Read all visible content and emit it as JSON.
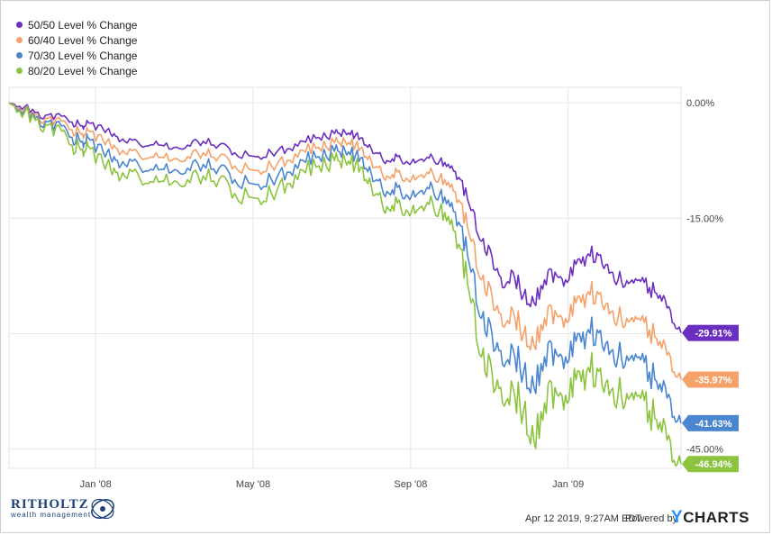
{
  "chart_data": {
    "type": "line",
    "x_ticks": [
      "Jan '08",
      "May '08",
      "Sep '08",
      "Jan '09"
    ],
    "y_ticks": [
      "0.00%",
      "-15.00%",
      "-45.00%"
    ],
    "ylim": [
      -47.5,
      2
    ],
    "grid": true,
    "legend_position": "top-left",
    "series": [
      {
        "name": "50/50 Level % Change",
        "color": "#6b2fbf",
        "end_label": "-29.91%",
        "points": [
          [
            0,
            0
          ],
          [
            3,
            -0.5
          ],
          [
            6,
            -2
          ],
          [
            9,
            -1.5
          ],
          [
            12,
            -2.5
          ],
          [
            14,
            -3
          ],
          [
            15,
            -2.5
          ],
          [
            18,
            -3.5
          ],
          [
            20,
            -4
          ],
          [
            22,
            -5
          ],
          [
            25,
            -5.5
          ],
          [
            28,
            -5
          ],
          [
            31,
            -6
          ],
          [
            34,
            -5.5
          ],
          [
            37,
            -5
          ],
          [
            40,
            -5.5
          ],
          [
            43,
            -6.5
          ],
          [
            47,
            -7
          ],
          [
            50,
            -6.5
          ],
          [
            53,
            -6
          ],
          [
            56,
            -5
          ],
          [
            59,
            -4.5
          ],
          [
            62,
            -4
          ],
          [
            64,
            -3.8
          ],
          [
            66,
            -4.2
          ],
          [
            68,
            -5.5
          ],
          [
            70,
            -6.5
          ],
          [
            72,
            -7.5
          ],
          [
            74,
            -7
          ],
          [
            76,
            -7.8
          ],
          [
            78,
            -7.5
          ],
          [
            80,
            -7.2
          ],
          [
            82,
            -7.6
          ],
          [
            84,
            -8.5
          ],
          [
            86,
            -10
          ],
          [
            88,
            -14
          ],
          [
            90,
            -18
          ],
          [
            92,
            -20
          ],
          [
            94,
            -24
          ],
          [
            96,
            -22
          ],
          [
            98,
            -25
          ],
          [
            100,
            -26
          ],
          [
            102,
            -23
          ],
          [
            104,
            -22
          ],
          [
            106,
            -23
          ],
          [
            108,
            -21
          ],
          [
            110,
            -20
          ],
          [
            112,
            -19.5
          ],
          [
            114,
            -21
          ],
          [
            116,
            -23
          ],
          [
            118,
            -23.5
          ],
          [
            120,
            -23
          ],
          [
            122,
            -24
          ],
          [
            124,
            -25
          ],
          [
            126,
            -27
          ],
          [
            128,
            -29.91
          ]
        ]
      },
      {
        "name": "60/40 Level % Change",
        "color": "#f5a26a",
        "end_label": "-35.97%",
        "points": [
          [
            0,
            0
          ],
          [
            3,
            -0.8
          ],
          [
            6,
            -2.5
          ],
          [
            9,
            -2
          ],
          [
            12,
            -3.5
          ],
          [
            14,
            -4
          ],
          [
            15,
            -3.5
          ],
          [
            18,
            -5
          ],
          [
            20,
            -5.5
          ],
          [
            22,
            -6.5
          ],
          [
            25,
            -7
          ],
          [
            28,
            -6.5
          ],
          [
            31,
            -7.5
          ],
          [
            34,
            -7
          ],
          [
            37,
            -6.5
          ],
          [
            40,
            -7
          ],
          [
            43,
            -8.2
          ],
          [
            47,
            -8.8
          ],
          [
            50,
            -8.2
          ],
          [
            53,
            -7.5
          ],
          [
            56,
            -6.2
          ],
          [
            59,
            -5.8
          ],
          [
            62,
            -5.2
          ],
          [
            64,
            -5
          ],
          [
            66,
            -5.5
          ],
          [
            68,
            -7
          ],
          [
            70,
            -8.3
          ],
          [
            72,
            -9.5
          ],
          [
            74,
            -9
          ],
          [
            76,
            -10
          ],
          [
            78,
            -9.6
          ],
          [
            80,
            -9.2
          ],
          [
            82,
            -9.8
          ],
          [
            84,
            -11
          ],
          [
            86,
            -13
          ],
          [
            88,
            -18
          ],
          [
            90,
            -23
          ],
          [
            92,
            -25
          ],
          [
            94,
            -29
          ],
          [
            96,
            -27
          ],
          [
            98,
            -30
          ],
          [
            100,
            -31.5
          ],
          [
            102,
            -28
          ],
          [
            104,
            -27
          ],
          [
            106,
            -28
          ],
          [
            108,
            -26
          ],
          [
            110,
            -25
          ],
          [
            112,
            -24.5
          ],
          [
            114,
            -26
          ],
          [
            116,
            -28
          ],
          [
            118,
            -28.5
          ],
          [
            120,
            -28
          ],
          [
            122,
            -29.5
          ],
          [
            124,
            -31
          ],
          [
            126,
            -33
          ],
          [
            128,
            -35.97
          ]
        ]
      },
      {
        "name": "70/30 Level % Change",
        "color": "#4a86cf",
        "end_label": "-41.63%",
        "points": [
          [
            0,
            0
          ],
          [
            3,
            -1
          ],
          [
            6,
            -3
          ],
          [
            9,
            -2.5
          ],
          [
            12,
            -4.5
          ],
          [
            14,
            -5
          ],
          [
            15,
            -4.5
          ],
          [
            18,
            -6.5
          ],
          [
            20,
            -7
          ],
          [
            22,
            -8
          ],
          [
            25,
            -8.5
          ],
          [
            28,
            -8
          ],
          [
            31,
            -9
          ],
          [
            34,
            -8.5
          ],
          [
            37,
            -8
          ],
          [
            40,
            -8.5
          ],
          [
            43,
            -10
          ],
          [
            47,
            -10.6
          ],
          [
            50,
            -10
          ],
          [
            53,
            -9
          ],
          [
            56,
            -7.5
          ],
          [
            59,
            -7
          ],
          [
            62,
            -6.3
          ],
          [
            64,
            -6.2
          ],
          [
            66,
            -6.8
          ],
          [
            68,
            -8.5
          ],
          [
            70,
            -10
          ],
          [
            72,
            -11.5
          ],
          [
            74,
            -11
          ],
          [
            76,
            -12.2
          ],
          [
            78,
            -11.7
          ],
          [
            80,
            -11.2
          ],
          [
            82,
            -12
          ],
          [
            84,
            -13.5
          ],
          [
            86,
            -16
          ],
          [
            88,
            -22
          ],
          [
            90,
            -28
          ],
          [
            92,
            -30
          ],
          [
            94,
            -34
          ],
          [
            96,
            -32
          ],
          [
            98,
            -35
          ],
          [
            100,
            -37
          ],
          [
            102,
            -33
          ],
          [
            104,
            -32
          ],
          [
            106,
            -33
          ],
          [
            108,
            -31
          ],
          [
            110,
            -30
          ],
          [
            112,
            -29.5
          ],
          [
            114,
            -31
          ],
          [
            116,
            -33
          ],
          [
            118,
            -33.5
          ],
          [
            120,
            -33
          ],
          [
            122,
            -35
          ],
          [
            124,
            -36.5
          ],
          [
            126,
            -38.5
          ],
          [
            128,
            -41.63
          ]
        ]
      },
      {
        "name": "80/20 Level % Change",
        "color": "#8cc43f",
        "end_label": "-46.94%",
        "points": [
          [
            0,
            0
          ],
          [
            3,
            -1.2
          ],
          [
            6,
            -3.5
          ],
          [
            9,
            -3
          ],
          [
            12,
            -5.5
          ],
          [
            14,
            -6
          ],
          [
            15,
            -5.5
          ],
          [
            18,
            -8
          ],
          [
            20,
            -8.5
          ],
          [
            22,
            -9.5
          ],
          [
            25,
            -10
          ],
          [
            28,
            -9.5
          ],
          [
            31,
            -10.5
          ],
          [
            34,
            -10
          ],
          [
            37,
            -9.5
          ],
          [
            40,
            -10
          ],
          [
            43,
            -11.8
          ],
          [
            47,
            -12.4
          ],
          [
            50,
            -11.8
          ],
          [
            53,
            -10.5
          ],
          [
            56,
            -8.8
          ],
          [
            59,
            -8.2
          ],
          [
            62,
            -7.5
          ],
          [
            64,
            -7.4
          ],
          [
            66,
            -8
          ],
          [
            68,
            -10
          ],
          [
            70,
            -11.8
          ],
          [
            72,
            -13.5
          ],
          [
            74,
            -13
          ],
          [
            76,
            -14.2
          ],
          [
            78,
            -13.8
          ],
          [
            80,
            -13.2
          ],
          [
            82,
            -14
          ],
          [
            84,
            -15.8
          ],
          [
            86,
            -19
          ],
          [
            88,
            -26
          ],
          [
            90,
            -33
          ],
          [
            92,
            -35
          ],
          [
            94,
            -39
          ],
          [
            96,
            -37
          ],
          [
            98,
            -40
          ],
          [
            100,
            -44
          ],
          [
            102,
            -39
          ],
          [
            104,
            -37
          ],
          [
            106,
            -38
          ],
          [
            108,
            -36
          ],
          [
            110,
            -35
          ],
          [
            112,
            -34.5
          ],
          [
            114,
            -36
          ],
          [
            116,
            -38
          ],
          [
            118,
            -38.5
          ],
          [
            120,
            -38
          ],
          [
            122,
            -40
          ],
          [
            124,
            -41.5
          ],
          [
            126,
            -44
          ],
          [
            128,
            -46.94
          ]
        ]
      }
    ]
  },
  "footer": {
    "brand_name": "RITHOLTZ",
    "brand_sub": "wealth management",
    "timestamp": "Apr 12 2019, 9:27AM EDT.",
    "powered_by": "Powered by",
    "ycharts_y": "Y",
    "ycharts_rest": "CHARTS"
  }
}
